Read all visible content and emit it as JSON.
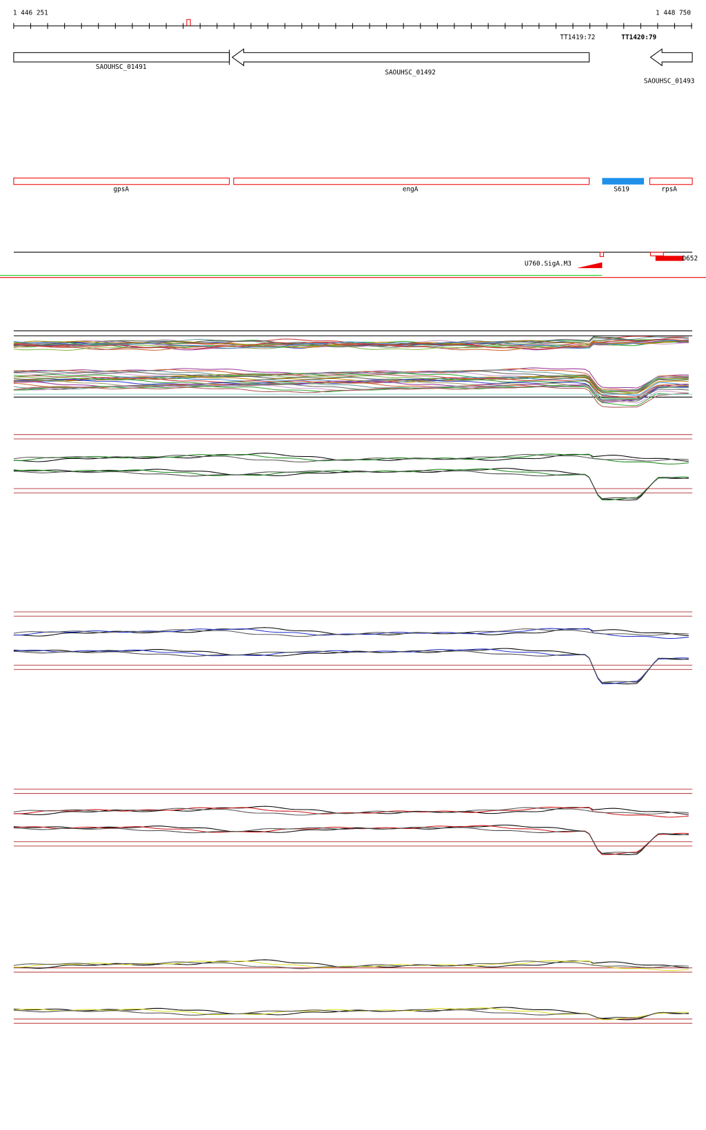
{
  "ruler": {
    "start": "1 446 251",
    "end": "1 448 750"
  },
  "terminators": [
    "TT1419:72",
    "TT1420:79"
  ],
  "genes": [
    "SAOUHSC_01491",
    "SAOUHSC_01492",
    "SAOUHSC_01493"
  ],
  "features": [
    "gpsA",
    "engA",
    "S619",
    "rpsA"
  ],
  "promoters": [
    "U760.SigA.M3",
    "D652"
  ]
}
